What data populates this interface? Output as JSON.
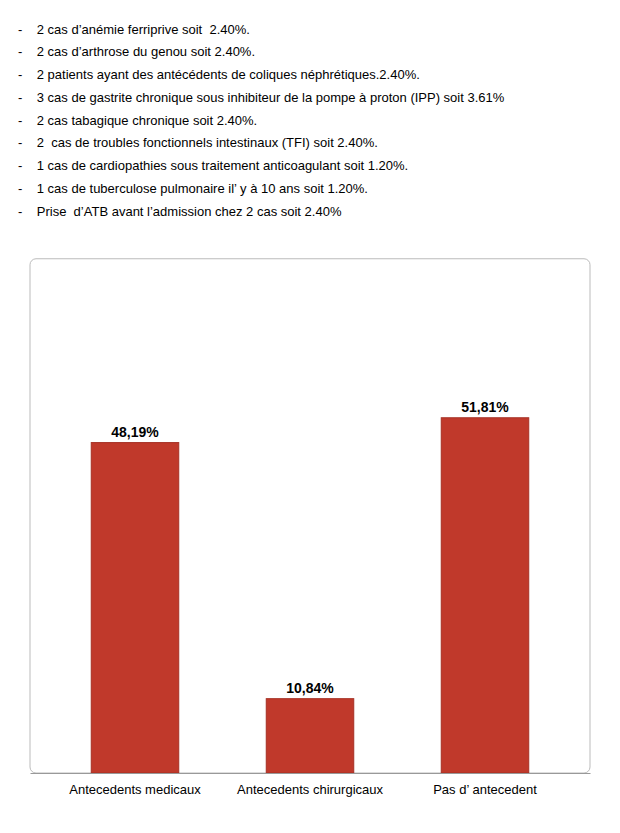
{
  "chart_data": {
    "type": "bar",
    "annotations": [
      "-    2 cas d’anémie ferriprive soit  2.40%.",
      "-    2 cas d’arthrose du genou soit 2.40%.",
      "-    2 patients ayant des antécédents de coliques néphrétiques.2.40%.",
      "-    3 cas de gastrite chronique sous inhibiteur de la pompe à proton (IPP) soit 3.61%",
      "-    2 cas tabagique chronique soit 2.40%.",
      "-    2  cas de troubles fonctionnels intestinaux (TFI) soit 2.40%.",
      "-    1 cas de cardiopathies sous traitement anticoagulant soit 1.20%.",
      "-    1 cas de tuberculose pulmonaire il’ y à 10 ans soit 1.20%.",
      "-    Prise  d’ATB avant l’admission chez 2 cas soit 2.40%"
    ],
    "categories": [
      "Antecedents medicaux",
      "Antecedents chirurgicaux",
      "Pas d’ antecedent"
    ],
    "values": [
      48.19,
      10.84,
      51.81
    ],
    "value_labels": [
      "48,19%",
      "10,84%",
      "51,81%"
    ],
    "data_labels": true,
    "color": "#C0392B",
    "ylim": [
      0,
      75
    ],
    "tick_labels": "x",
    "grid": false
  }
}
